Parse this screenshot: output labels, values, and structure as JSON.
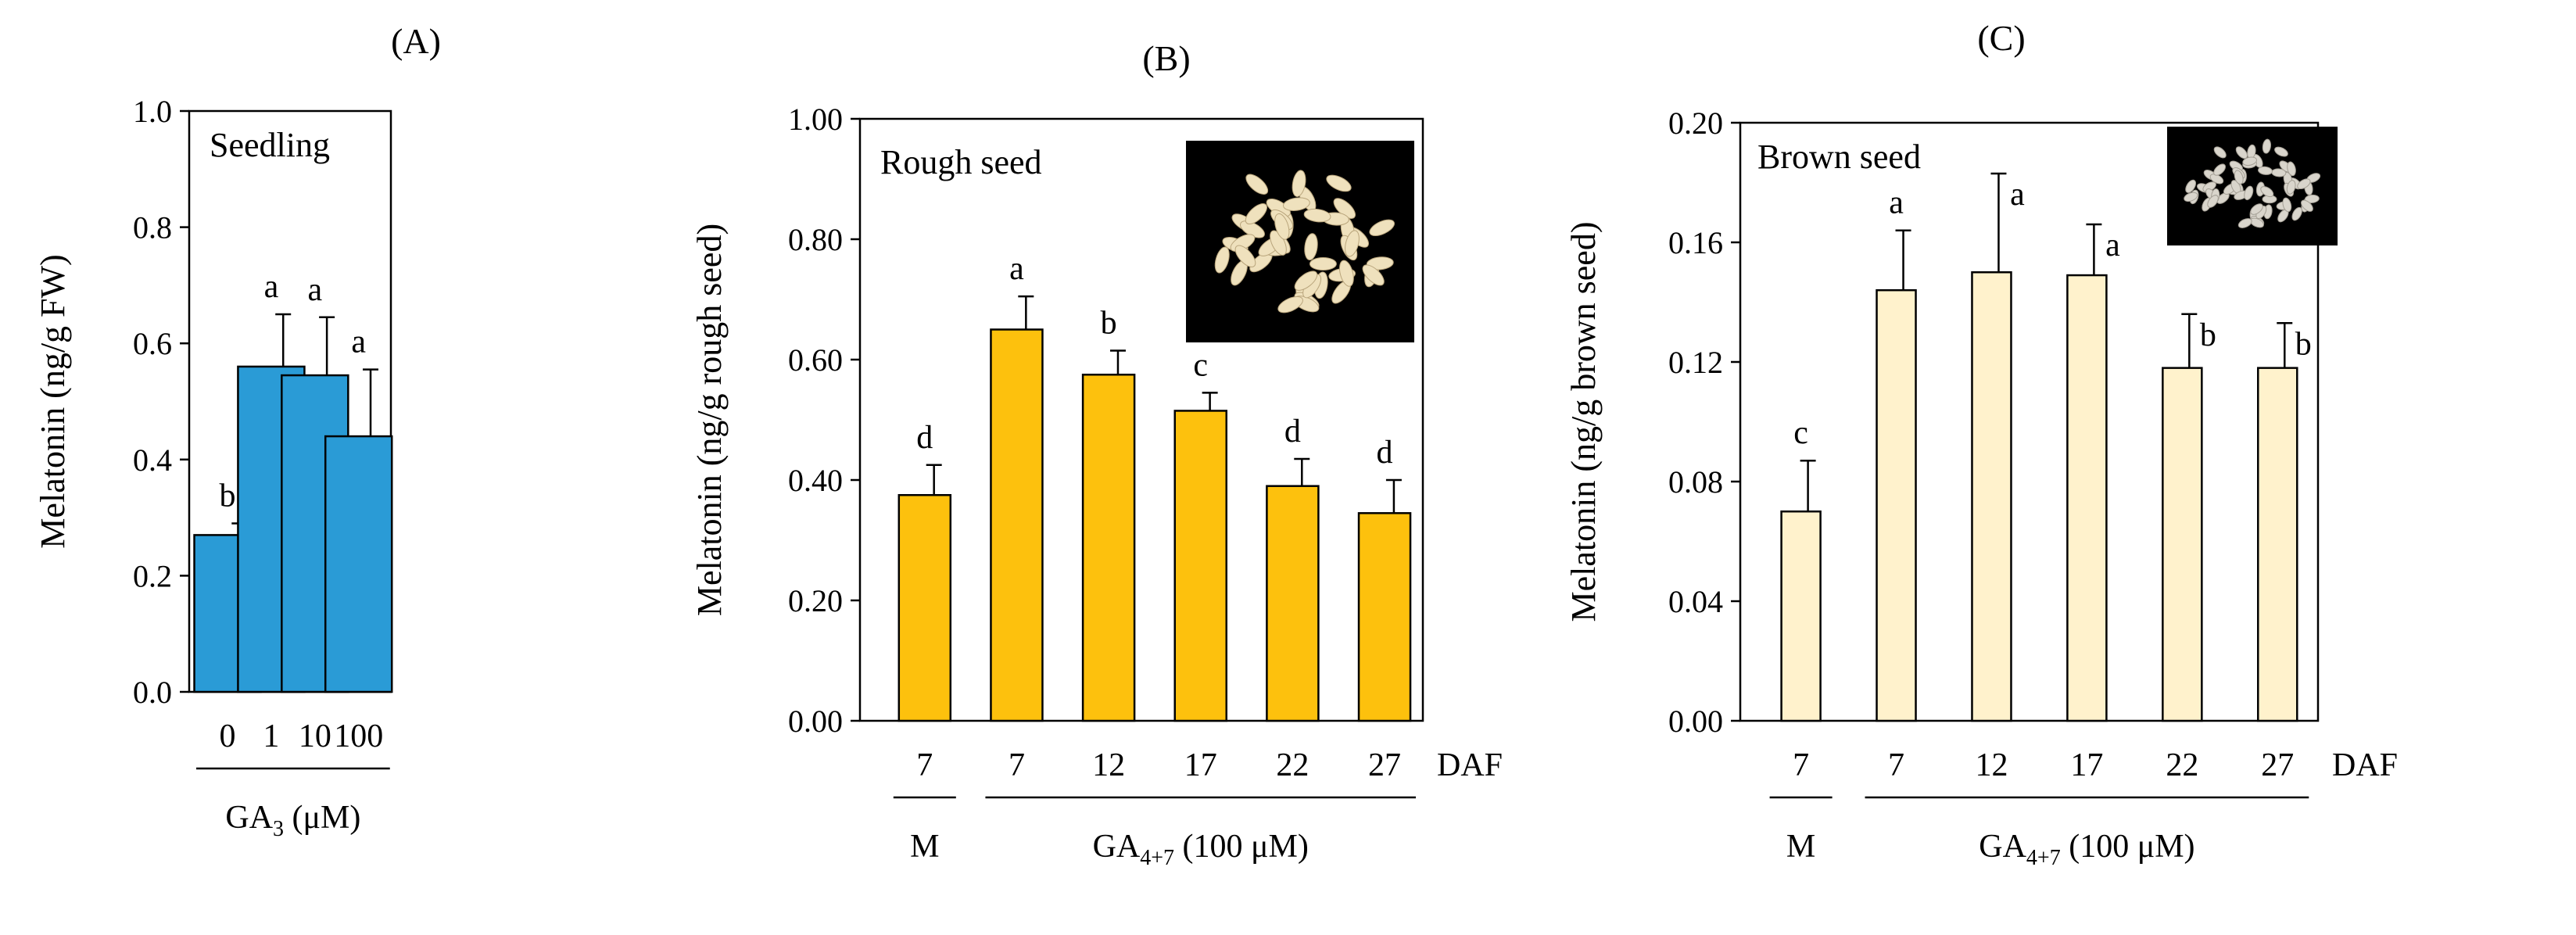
{
  "chart_data": [
    {
      "type": "bar",
      "panel_label": "(A)",
      "inset_label": "Seedling",
      "ylabel": "Melatonin (ng/g FW)",
      "ylim": [
        0,
        1.0
      ],
      "yticks": [
        0.0,
        0.2,
        0.4,
        0.6,
        0.8,
        1.0
      ],
      "ytick_labels": [
        "0.0",
        "0.2",
        "0.4",
        "0.6",
        "0.8",
        "1.0"
      ],
      "categories": [
        "0",
        "1",
        "10",
        "100"
      ],
      "values": [
        0.27,
        0.56,
        0.545,
        0.44
      ],
      "errors": [
        0.02,
        0.09,
        0.1,
        0.115
      ],
      "significance": [
        "b",
        "a",
        "a",
        "a"
      ],
      "bar_color": "#2a9bd6",
      "groups": [
        {
          "label": "",
          "sub": "",
          "label_suffix": "",
          "unit": "",
          "from": 0,
          "to": 3,
          "xlabel_main": "GA",
          "xlabel_sub": "3",
          "xlabel_rest": " (μM)"
        }
      ],
      "trailing_label": ""
    },
    {
      "type": "bar",
      "panel_label": "(B)",
      "inset_label": "Rough seed",
      "has_photo": true,
      "photo_style": "rough",
      "ylabel": "Melatonin (ng/g rough seed)",
      "ylim": [
        0,
        1.0
      ],
      "yticks": [
        0.0,
        0.2,
        0.4,
        0.6,
        0.8,
        1.0
      ],
      "ytick_labels": [
        "0.00",
        "0.20",
        "0.40",
        "0.60",
        "0.80",
        "1.00"
      ],
      "categories": [
        "7",
        "7",
        "12",
        "17",
        "22",
        "27"
      ],
      "values": [
        0.375,
        0.65,
        0.575,
        0.515,
        0.39,
        0.345
      ],
      "errors": [
        0.05,
        0.055,
        0.04,
        0.03,
        0.045,
        0.055
      ],
      "significance": [
        "d",
        "a",
        "b",
        "c",
        "d",
        "d"
      ],
      "bar_color": "#fdc10d",
      "trailing_label": "DAF",
      "groups": [
        {
          "from": 0,
          "to": 0,
          "xlabel_main": "M",
          "xlabel_sub": "",
          "xlabel_rest": ""
        },
        {
          "from": 1,
          "to": 5,
          "xlabel_main": "GA",
          "xlabel_sub": "4+7",
          "xlabel_rest": " (100 μM)"
        }
      ]
    },
    {
      "type": "bar",
      "panel_label": "(C)",
      "inset_label": "Brown seed",
      "has_photo": true,
      "photo_style": "brown",
      "ylabel": "Melatonin (ng/g brown seed)",
      "ylim": [
        0,
        0.2
      ],
      "yticks": [
        0.0,
        0.04,
        0.08,
        0.12,
        0.16,
        0.2
      ],
      "ytick_labels": [
        "0.00",
        "0.04",
        "0.08",
        "0.12",
        "0.16",
        "0.20"
      ],
      "categories": [
        "7",
        "7",
        "12",
        "17",
        "22",
        "27"
      ],
      "values": [
        0.07,
        0.144,
        0.15,
        0.149,
        0.118,
        0.118
      ],
      "errors": [
        0.017,
        0.02,
        0.033,
        0.017,
        0.018,
        0.015
      ],
      "significance": [
        "c",
        "a",
        "a",
        "a",
        "b",
        "b"
      ],
      "bar_color": "#fff2cc",
      "trailing_label": "DAF",
      "groups": [
        {
          "from": 0,
          "to": 0,
          "xlabel_main": "M",
          "xlabel_sub": "",
          "xlabel_rest": ""
        },
        {
          "from": 1,
          "to": 5,
          "xlabel_main": "GA",
          "xlabel_sub": "4+7",
          "xlabel_rest": " (100 μM)"
        }
      ]
    }
  ]
}
